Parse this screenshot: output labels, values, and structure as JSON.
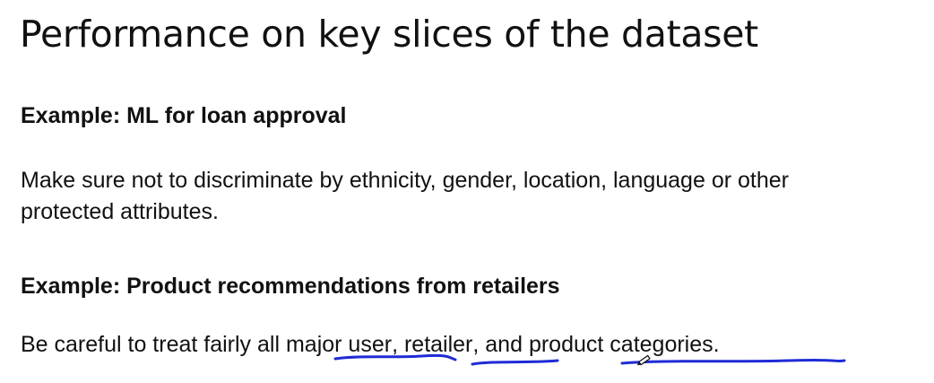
{
  "slide": {
    "title": "Performance on key slices of the dataset",
    "example1": {
      "heading": "Example: ML for loan approval",
      "line1": "Make sure not to discriminate by ethnicity, gender, location, language or other",
      "line2": "protected attributes."
    },
    "example2": {
      "heading": "Example: Product recommendations from retailers",
      "text_before": "Be careful to treat fairly all ",
      "term1": "major user",
      "sep1": ", ",
      "term2": "retailer",
      "sep2": ", and ",
      "term3": "product categories."
    }
  },
  "colors": {
    "text": "#111111",
    "annotation_ink": "#1f2bd6",
    "background": "#ffffff"
  }
}
